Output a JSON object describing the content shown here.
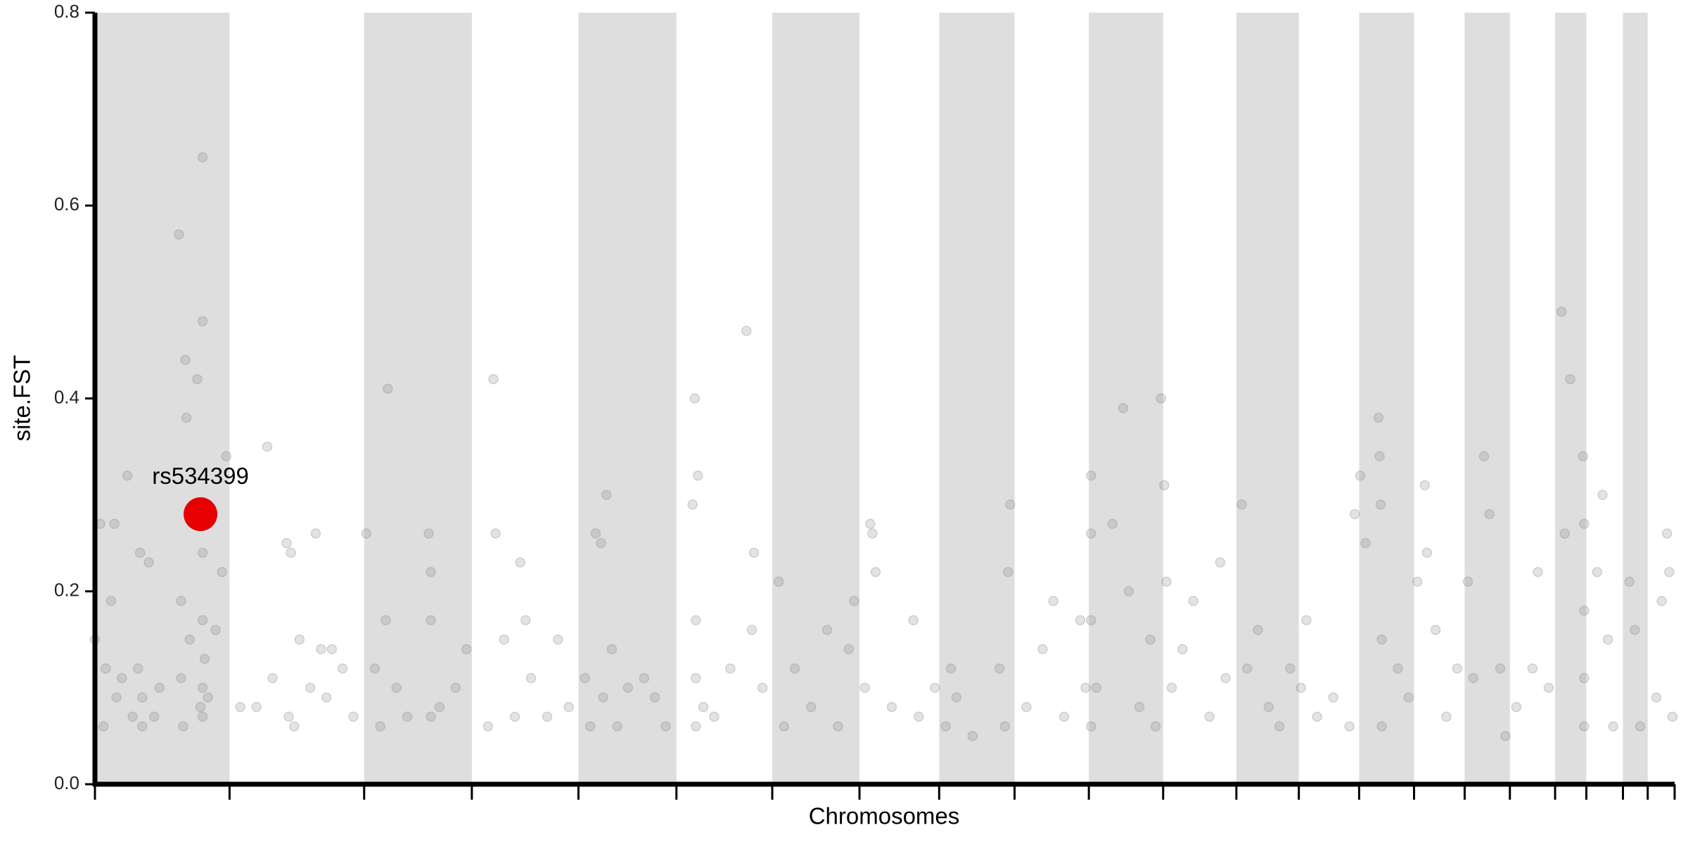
{
  "chart_data": {
    "type": "scatter",
    "x_label": "Chromosomes",
    "y_label": "site.FST",
    "xlim": [
      0,
      1467
    ],
    "ylim": [
      0,
      0.8
    ],
    "yticks": [
      {
        "value": 0,
        "label": "0.0"
      },
      0.2,
      0.4,
      0.6,
      0.8
    ],
    "chromosome_boundaries": [
      0,
      125,
      250,
      350,
      449,
      540,
      629,
      710,
      784,
      854,
      923,
      992,
      1060,
      1118,
      1174,
      1225,
      1272,
      1314,
      1356,
      1385,
      1419,
      1442,
      1467
    ],
    "bands": [
      [
        0,
        125
      ],
      [
        250,
        350
      ],
      [
        449,
        540
      ],
      [
        629,
        710
      ],
      [
        784,
        854
      ],
      [
        923,
        992
      ],
      [
        1060,
        1118
      ],
      [
        1174,
        1225
      ],
      [
        1272,
        1314
      ],
      [
        1356,
        1385
      ],
      [
        1419,
        1442
      ]
    ],
    "band_color": "#dedede",
    "point_color": "#808080",
    "x": [
      0,
      5,
      8,
      10,
      15,
      18,
      20,
      25,
      30,
      35,
      40,
      42,
      44,
      44,
      50,
      55,
      60,
      78,
      80,
      80,
      82,
      84,
      85,
      88,
      95,
      98,
      100,
      100,
      100,
      100,
      100,
      100,
      102,
      105,
      112,
      118,
      122,
      135,
      150,
      160,
      165,
      178,
      180,
      182,
      185,
      190,
      200,
      205,
      210,
      215,
      220,
      230,
      240,
      252,
      260,
      265,
      270,
      272,
      280,
      290,
      310,
      312,
      312,
      312,
      320,
      335,
      345,
      365,
      370,
      372,
      380,
      390,
      395,
      400,
      405,
      420,
      430,
      440,
      455,
      460,
      465,
      470,
      472,
      475,
      480,
      485,
      495,
      510,
      520,
      530,
      555,
      557,
      558,
      558,
      558,
      560,
      565,
      575,
      590,
      605,
      610,
      612,
      620,
      635,
      640,
      650,
      665,
      680,
      690,
      700,
      705,
      715,
      720,
      722,
      725,
      740,
      760,
      765,
      780,
      790,
      795,
      800,
      815,
      840,
      845,
      850,
      848,
      865,
      880,
      890,
      900,
      915,
      920,
      925,
      925,
      925,
      925,
      930,
      945,
      955,
      960,
      970,
      980,
      985,
      990,
      993,
      995,
      1000,
      1010,
      1020,
      1035,
      1045,
      1050,
      1065,
      1070,
      1080,
      1090,
      1100,
      1110,
      1120,
      1125,
      1135,
      1150,
      1165,
      1170,
      1175,
      1180,
      1192,
      1193,
      1194,
      1195,
      1195,
      1210,
      1220,
      1228,
      1235,
      1237,
      1245,
      1255,
      1265,
      1275,
      1280,
      1290,
      1295,
      1305,
      1310,
      1320,
      1335,
      1340,
      1350,
      1362,
      1365,
      1370,
      1382,
      1383,
      1383,
      1383,
      1383,
      1395,
      1400,
      1405,
      1410,
      1425,
      1430,
      1435,
      1450,
      1455,
      1460,
      1462,
      1465
    ],
    "values": [
      0.15,
      0.27,
      0.06,
      0.12,
      0.19,
      0.27,
      0.09,
      0.11,
      0.32,
      0.07,
      0.12,
      0.24,
      0.09,
      0.06,
      0.23,
      0.07,
      0.1,
      0.57,
      0.19,
      0.11,
      0.06,
      0.44,
      0.38,
      0.15,
      0.42,
      0.08,
      0.65,
      0.48,
      0.24,
      0.17,
      0.1,
      0.07,
      0.13,
      0.09,
      0.16,
      0.22,
      0.34,
      0.08,
      0.08,
      0.35,
      0.11,
      0.25,
      0.07,
      0.24,
      0.06,
      0.15,
      0.1,
      0.26,
      0.14,
      0.09,
      0.14,
      0.12,
      0.07,
      0.26,
      0.12,
      0.06,
      0.17,
      0.41,
      0.1,
      0.07,
      0.26,
      0.22,
      0.17,
      0.07,
      0.08,
      0.1,
      0.14,
      0.06,
      0.42,
      0.26,
      0.15,
      0.07,
      0.23,
      0.17,
      0.11,
      0.07,
      0.15,
      0.08,
      0.11,
      0.06,
      0.26,
      0.25,
      0.09,
      0.3,
      0.14,
      0.06,
      0.1,
      0.11,
      0.09,
      0.06,
      0.29,
      0.4,
      0.17,
      0.11,
      0.06,
      0.32,
      0.08,
      0.07,
      0.12,
      0.47,
      0.16,
      0.24,
      0.1,
      0.21,
      0.06,
      0.12,
      0.08,
      0.16,
      0.06,
      0.14,
      0.19,
      0.1,
      0.27,
      0.26,
      0.22,
      0.08,
      0.17,
      0.07,
      0.1,
      0.06,
      0.12,
      0.09,
      0.05,
      0.12,
      0.06,
      0.29,
      0.22,
      0.08,
      0.14,
      0.19,
      0.07,
      0.17,
      0.1,
      0.32,
      0.26,
      0.17,
      0.06,
      0.1,
      0.27,
      0.39,
      0.2,
      0.08,
      0.15,
      0.06,
      0.4,
      0.31,
      0.21,
      0.1,
      0.14,
      0.19,
      0.07,
      0.23,
      0.11,
      0.29,
      0.12,
      0.16,
      0.08,
      0.06,
      0.12,
      0.1,
      0.17,
      0.07,
      0.09,
      0.06,
      0.28,
      0.32,
      0.25,
      0.38,
      0.34,
      0.29,
      0.15,
      0.06,
      0.12,
      0.09,
      0.21,
      0.31,
      0.24,
      0.16,
      0.07,
      0.12,
      0.21,
      0.11,
      0.34,
      0.28,
      0.12,
      0.05,
      0.08,
      0.12,
      0.22,
      0.1,
      0.49,
      0.26,
      0.42,
      0.34,
      0.27,
      0.18,
      0.11,
      0.06,
      0.22,
      0.3,
      0.15,
      0.06,
      0.21,
      0.16,
      0.06,
      0.09,
      0.19,
      0.26,
      0.22,
      0.07
    ],
    "highlight": {
      "label": "rs534399",
      "x": 98,
      "value": 0.28,
      "color": "#e60000"
    }
  }
}
